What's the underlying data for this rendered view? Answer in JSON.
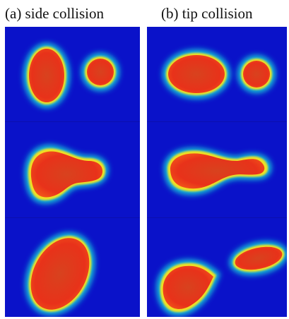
{
  "figure": {
    "panels": [
      {
        "id": "a",
        "label": "(a) side collision",
        "frames": 3
      },
      {
        "id": "b",
        "label": "(b) tip collision",
        "frames": 3
      }
    ],
    "colors": {
      "background_field": "#0a12c9",
      "droplet_core": "#e8321a",
      "droplet_rim": "#f0e020",
      "halo": "#19c0d8"
    }
  }
}
